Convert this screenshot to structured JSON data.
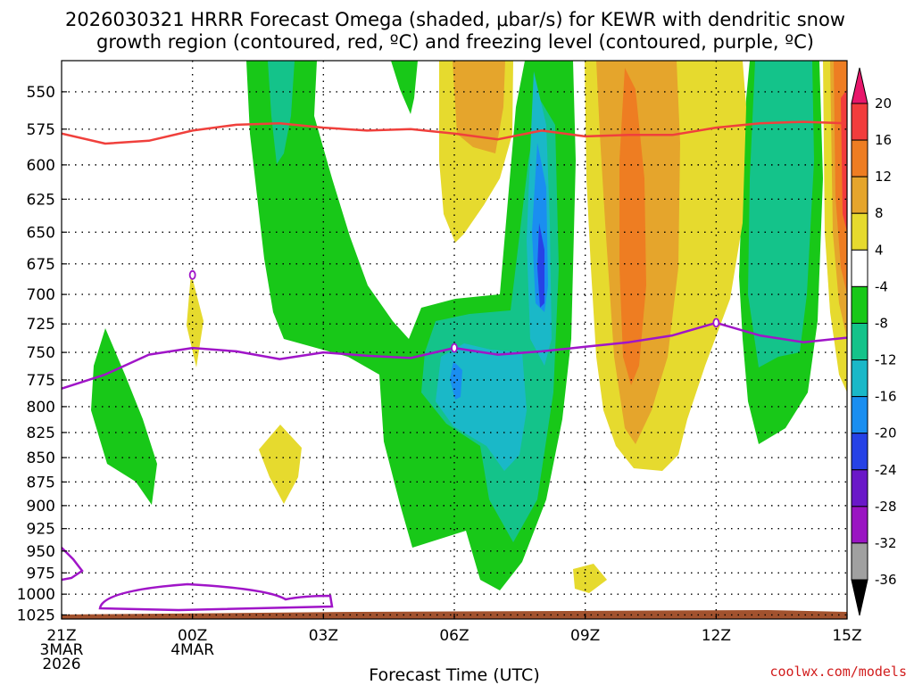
{
  "chart_data": {
    "type": "heatmap",
    "title_line1": "2026030321 HRRR Forecast Omega (shaded, μbar/s) for KEWR with dendritic snow",
    "title_line2": "growth region (contoured, red, ºC) and freezing level (contoured, purple, ºC)",
    "xlabel": "Forecast Time (UTC)",
    "credit": "coolwx.com/models",
    "x_ticks": [
      {
        "hour": 0,
        "lines": [
          "21Z",
          "3MAR",
          "2026"
        ]
      },
      {
        "hour": 3,
        "lines": [
          "00Z",
          "4MAR"
        ]
      },
      {
        "hour": 6,
        "lines": [
          "03Z"
        ]
      },
      {
        "hour": 9,
        "lines": [
          "06Z"
        ]
      },
      {
        "hour": 12,
        "lines": [
          "09Z"
        ]
      },
      {
        "hour": 15,
        "lines": [
          "12Z"
        ]
      },
      {
        "hour": 18,
        "lines": [
          "15Z"
        ]
      }
    ],
    "x_range_hours": [
      0,
      18
    ],
    "y_ticks": [
      550,
      575,
      600,
      625,
      650,
      675,
      700,
      725,
      750,
      775,
      800,
      825,
      850,
      875,
      900,
      925,
      950,
      975,
      1000,
      1025
    ],
    "y_range_hpa": [
      530,
      1030
    ],
    "colorbar": {
      "labels": [
        20,
        16,
        12,
        8,
        4,
        -4,
        -8,
        -12,
        -16,
        -20,
        -24,
        -28,
        -32,
        -36
      ],
      "colors": [
        "#e8176b",
        "#f23c3c",
        "#ee7d22",
        "#e5a52c",
        "#e6da2e",
        "#ffffff",
        "#18c818",
        "#14c38a",
        "#1ab8c8",
        "#1a8ef0",
        "#2642e6",
        "#6a18c8",
        "#9a14c2",
        "#a0a0a0",
        "#000000"
      ]
    },
    "dgz_line_color": "#f0403c",
    "freezing_line_color": "#a015c8",
    "ground_color": "#a2522e",
    "dgz_top_level_hpa": [
      [
        0,
        578
      ],
      [
        1,
        585
      ],
      [
        2,
        583
      ],
      [
        3,
        576
      ],
      [
        4,
        572
      ],
      [
        5,
        571
      ],
      [
        6,
        574
      ],
      [
        7,
        576
      ],
      [
        8,
        575
      ],
      [
        9,
        578
      ],
      [
        10,
        582
      ],
      [
        11,
        576
      ],
      [
        12,
        580
      ],
      [
        13,
        579
      ],
      [
        14,
        579
      ],
      [
        15,
        574
      ],
      [
        16,
        571
      ],
      [
        17,
        570
      ],
      [
        18,
        571
      ]
    ],
    "freezing_level_hpa": [
      [
        0,
        783
      ],
      [
        1,
        770
      ],
      [
        2,
        752
      ],
      [
        3,
        746
      ],
      [
        4,
        749
      ],
      [
        5,
        756
      ],
      [
        6,
        750
      ],
      [
        7,
        753
      ],
      [
        8,
        755
      ],
      [
        9,
        746
      ],
      [
        10,
        752
      ],
      [
        11,
        749
      ],
      [
        12,
        745
      ],
      [
        13,
        741
      ],
      [
        14,
        735
      ],
      [
        15,
        724
      ],
      [
        16,
        735
      ],
      [
        17,
        741
      ],
      [
        18,
        737
      ]
    ]
  }
}
